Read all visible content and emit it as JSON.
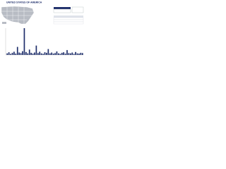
{
  "header": {
    "title": "UNITED STATES OF AMERICA"
  },
  "chart_data": {
    "type": "bar",
    "categories": [
      null,
      null,
      null,
      null,
      null,
      null,
      null,
      null,
      null,
      null,
      null,
      null,
      null,
      null,
      null,
      null,
      null,
      null,
      null,
      null,
      null,
      null,
      null,
      null,
      null,
      null,
      null,
      null,
      null,
      null,
      null,
      null,
      null,
      null,
      null,
      null,
      null,
      null,
      null,
      null,
      null,
      null,
      null,
      null,
      null
    ],
    "values": [
      6,
      10,
      4,
      8,
      12,
      5,
      30,
      9,
      7,
      14,
      100,
      11,
      6,
      20,
      8,
      5,
      9,
      35,
      7,
      12,
      6,
      4,
      10,
      8,
      22,
      6,
      9,
      5,
      7,
      13,
      6,
      4,
      8,
      10,
      5,
      18,
      7,
      6,
      9,
      4,
      11,
      6,
      5,
      8,
      7
    ],
    "color": "#1f2f6b",
    "ylim": [
      0,
      100
    ]
  }
}
